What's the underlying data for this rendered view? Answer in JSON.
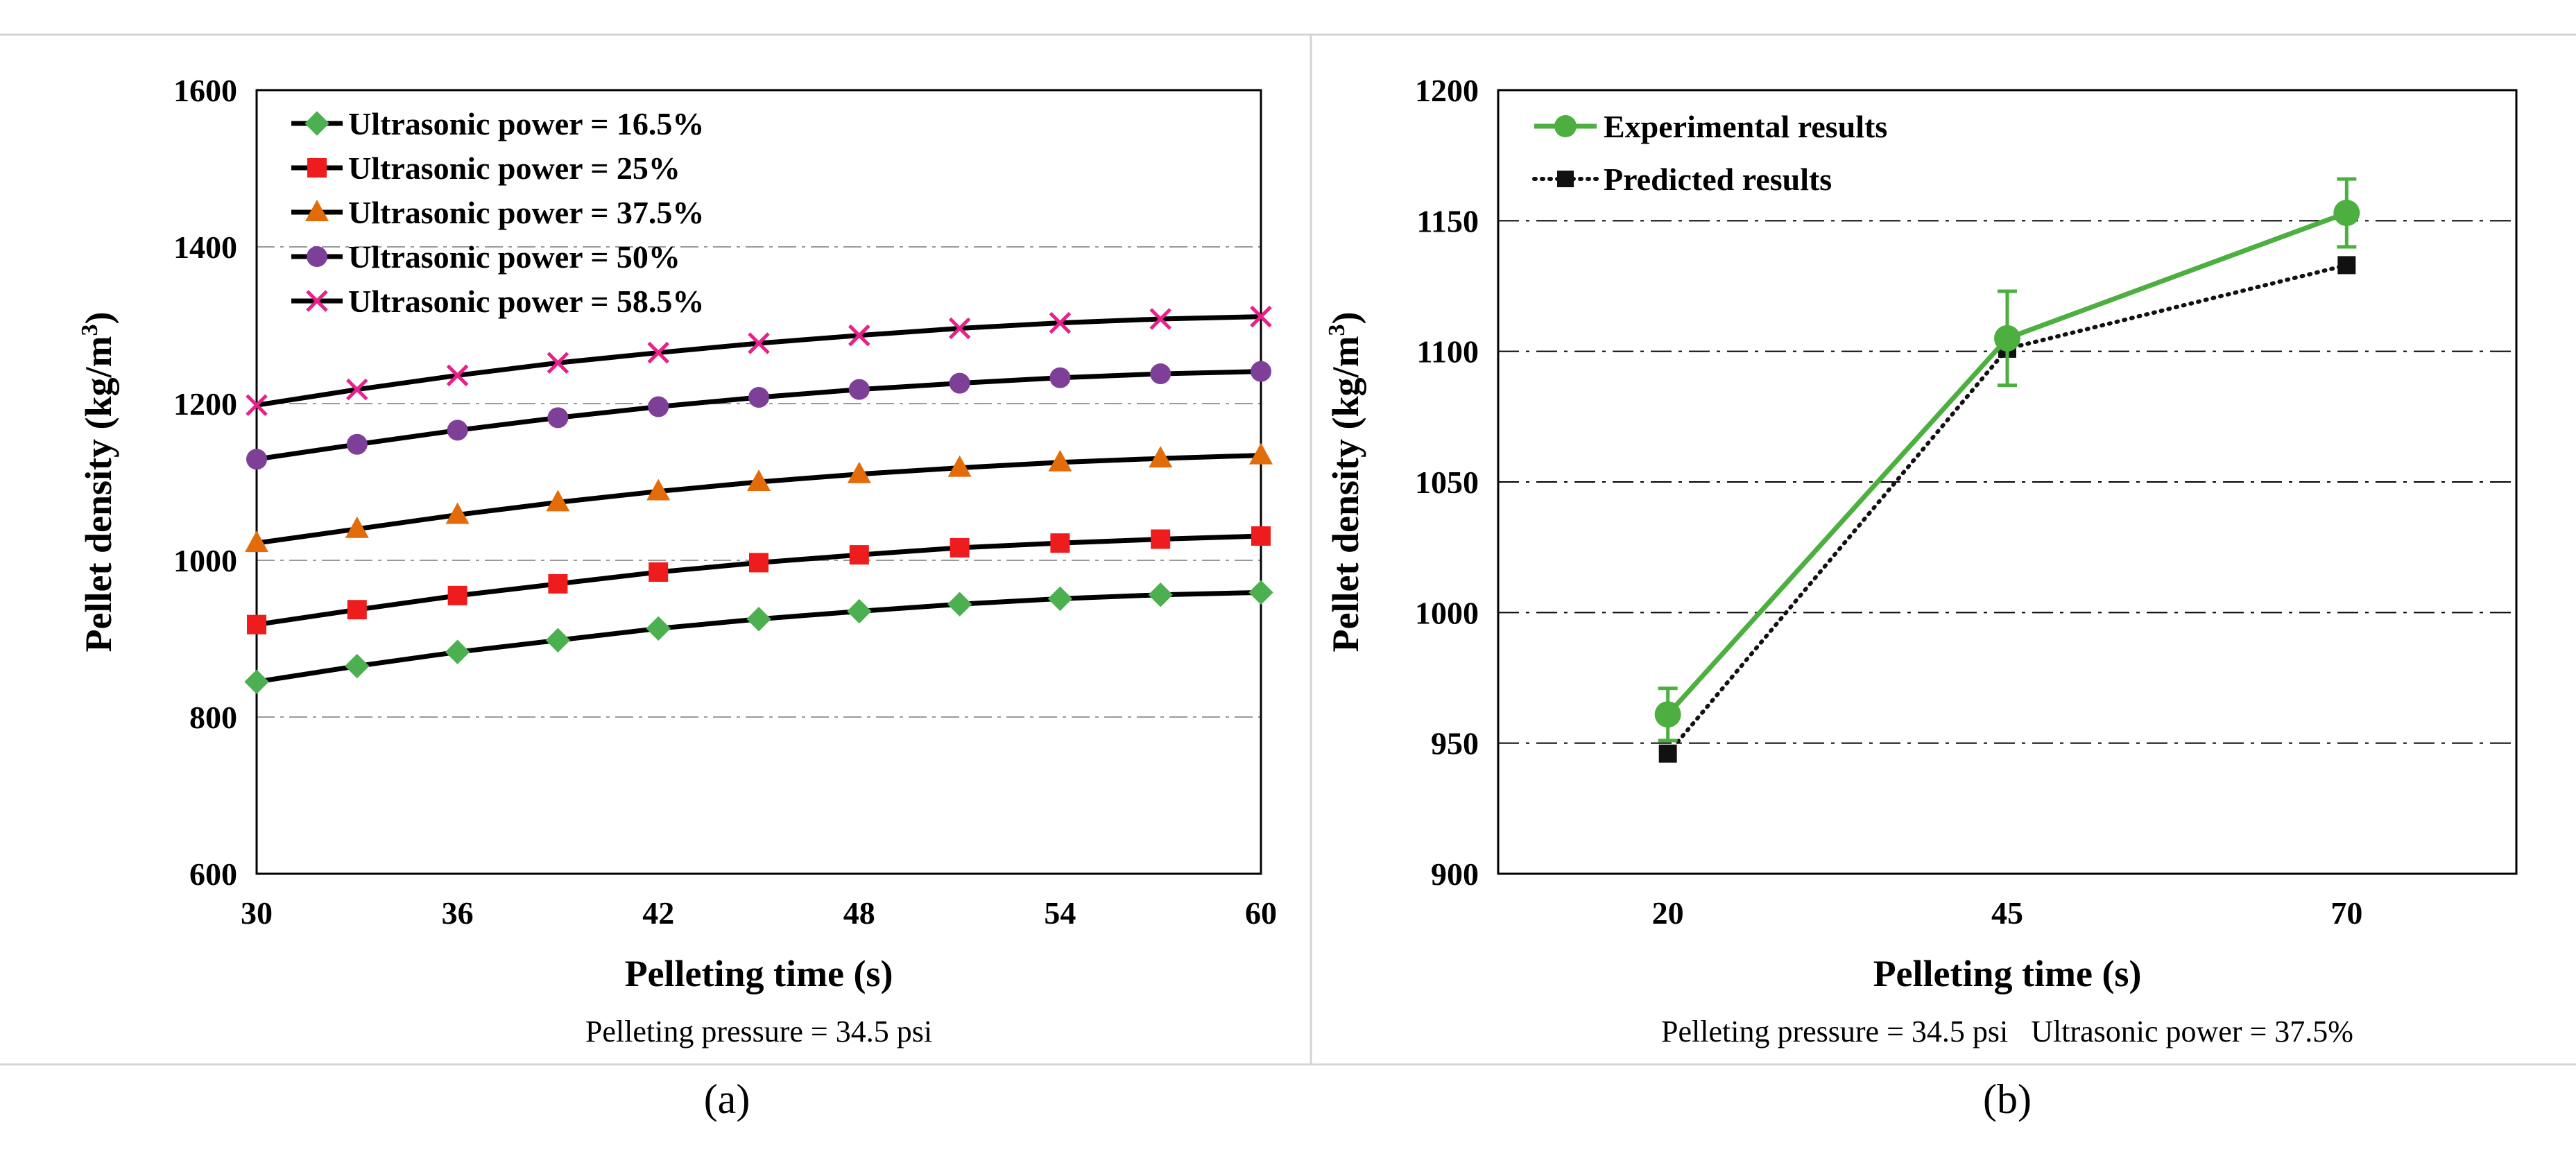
{
  "chart_data": [
    {
      "type": "line",
      "panel_label": "(a)",
      "xlabel": "Pelleting time (s)",
      "ylabel": "Pellet density (kg/m",
      "ylabel_sup": "3",
      "ylabel_end": ")",
      "caption": "Pelleting pressure = 34.5 psi",
      "xlim": [
        30,
        60
      ],
      "ylim": [
        600,
        1600
      ],
      "xticks": [
        30,
        36,
        42,
        48,
        54,
        60
      ],
      "yticks": [
        600,
        800,
        1000,
        1200,
        1400,
        1600
      ],
      "grid": "horizontal dashed",
      "legend": "top-left",
      "x": [
        30,
        33,
        36,
        39,
        42,
        45,
        48,
        51,
        54,
        57,
        60
      ],
      "series": [
        {
          "name": "Ultrasonic power = 16.5%",
          "marker": "diamond",
          "color": "#4CAF50",
          "values": [
            845,
            865,
            883,
            898,
            913,
            925,
            935,
            944,
            951,
            956,
            959
          ]
        },
        {
          "name": "Ultrasonic power = 25%",
          "marker": "square",
          "color": "#EE1C1C",
          "values": [
            918,
            937,
            955,
            970,
            985,
            997,
            1007,
            1016,
            1022,
            1027,
            1031
          ]
        },
        {
          "name": "Ultrasonic power = 37.5%",
          "marker": "triangle",
          "color": "#E36C0A",
          "values": [
            1022,
            1040,
            1058,
            1074,
            1088,
            1100,
            1110,
            1118,
            1125,
            1130,
            1134
          ]
        },
        {
          "name": "Ultrasonic power = 50%",
          "marker": "circle",
          "color": "#7E3F98",
          "values": [
            1129,
            1148,
            1166,
            1182,
            1196,
            1208,
            1218,
            1226,
            1233,
            1238,
            1241
          ]
        },
        {
          "name": "Ultrasonic power = 58.5%",
          "marker": "x",
          "color": "#E8208A",
          "values": [
            1198,
            1218,
            1236,
            1252,
            1265,
            1277,
            1287,
            1296,
            1303,
            1308,
            1311
          ]
        }
      ]
    },
    {
      "type": "line",
      "panel_label": "(b)",
      "xlabel": "Pelleting time (s)",
      "ylabel": "Pellet density (kg/m",
      "ylabel_sup": "3",
      "ylabel_end": ")",
      "caption": "Pelleting pressure = 34.5 psi   Ultrasonic power = 37.5%",
      "categories": [
        "20",
        "45",
        "70"
      ],
      "ylim": [
        900,
        1200
      ],
      "yticks": [
        900,
        950,
        1000,
        1050,
        1100,
        1150,
        1200
      ],
      "grid": "horizontal dash-dot",
      "legend": "top-left",
      "series": [
        {
          "name": "Experimental results",
          "marker": "circle",
          "color": "#4CAF3F",
          "line": "solid",
          "values": [
            961,
            1105,
            1153
          ],
          "error": [
            10,
            18,
            13
          ]
        },
        {
          "name": "Predicted results",
          "marker": "square",
          "color": "#111111",
          "line": "dotted",
          "values": [
            946,
            1101,
            1133
          ]
        }
      ]
    }
  ]
}
